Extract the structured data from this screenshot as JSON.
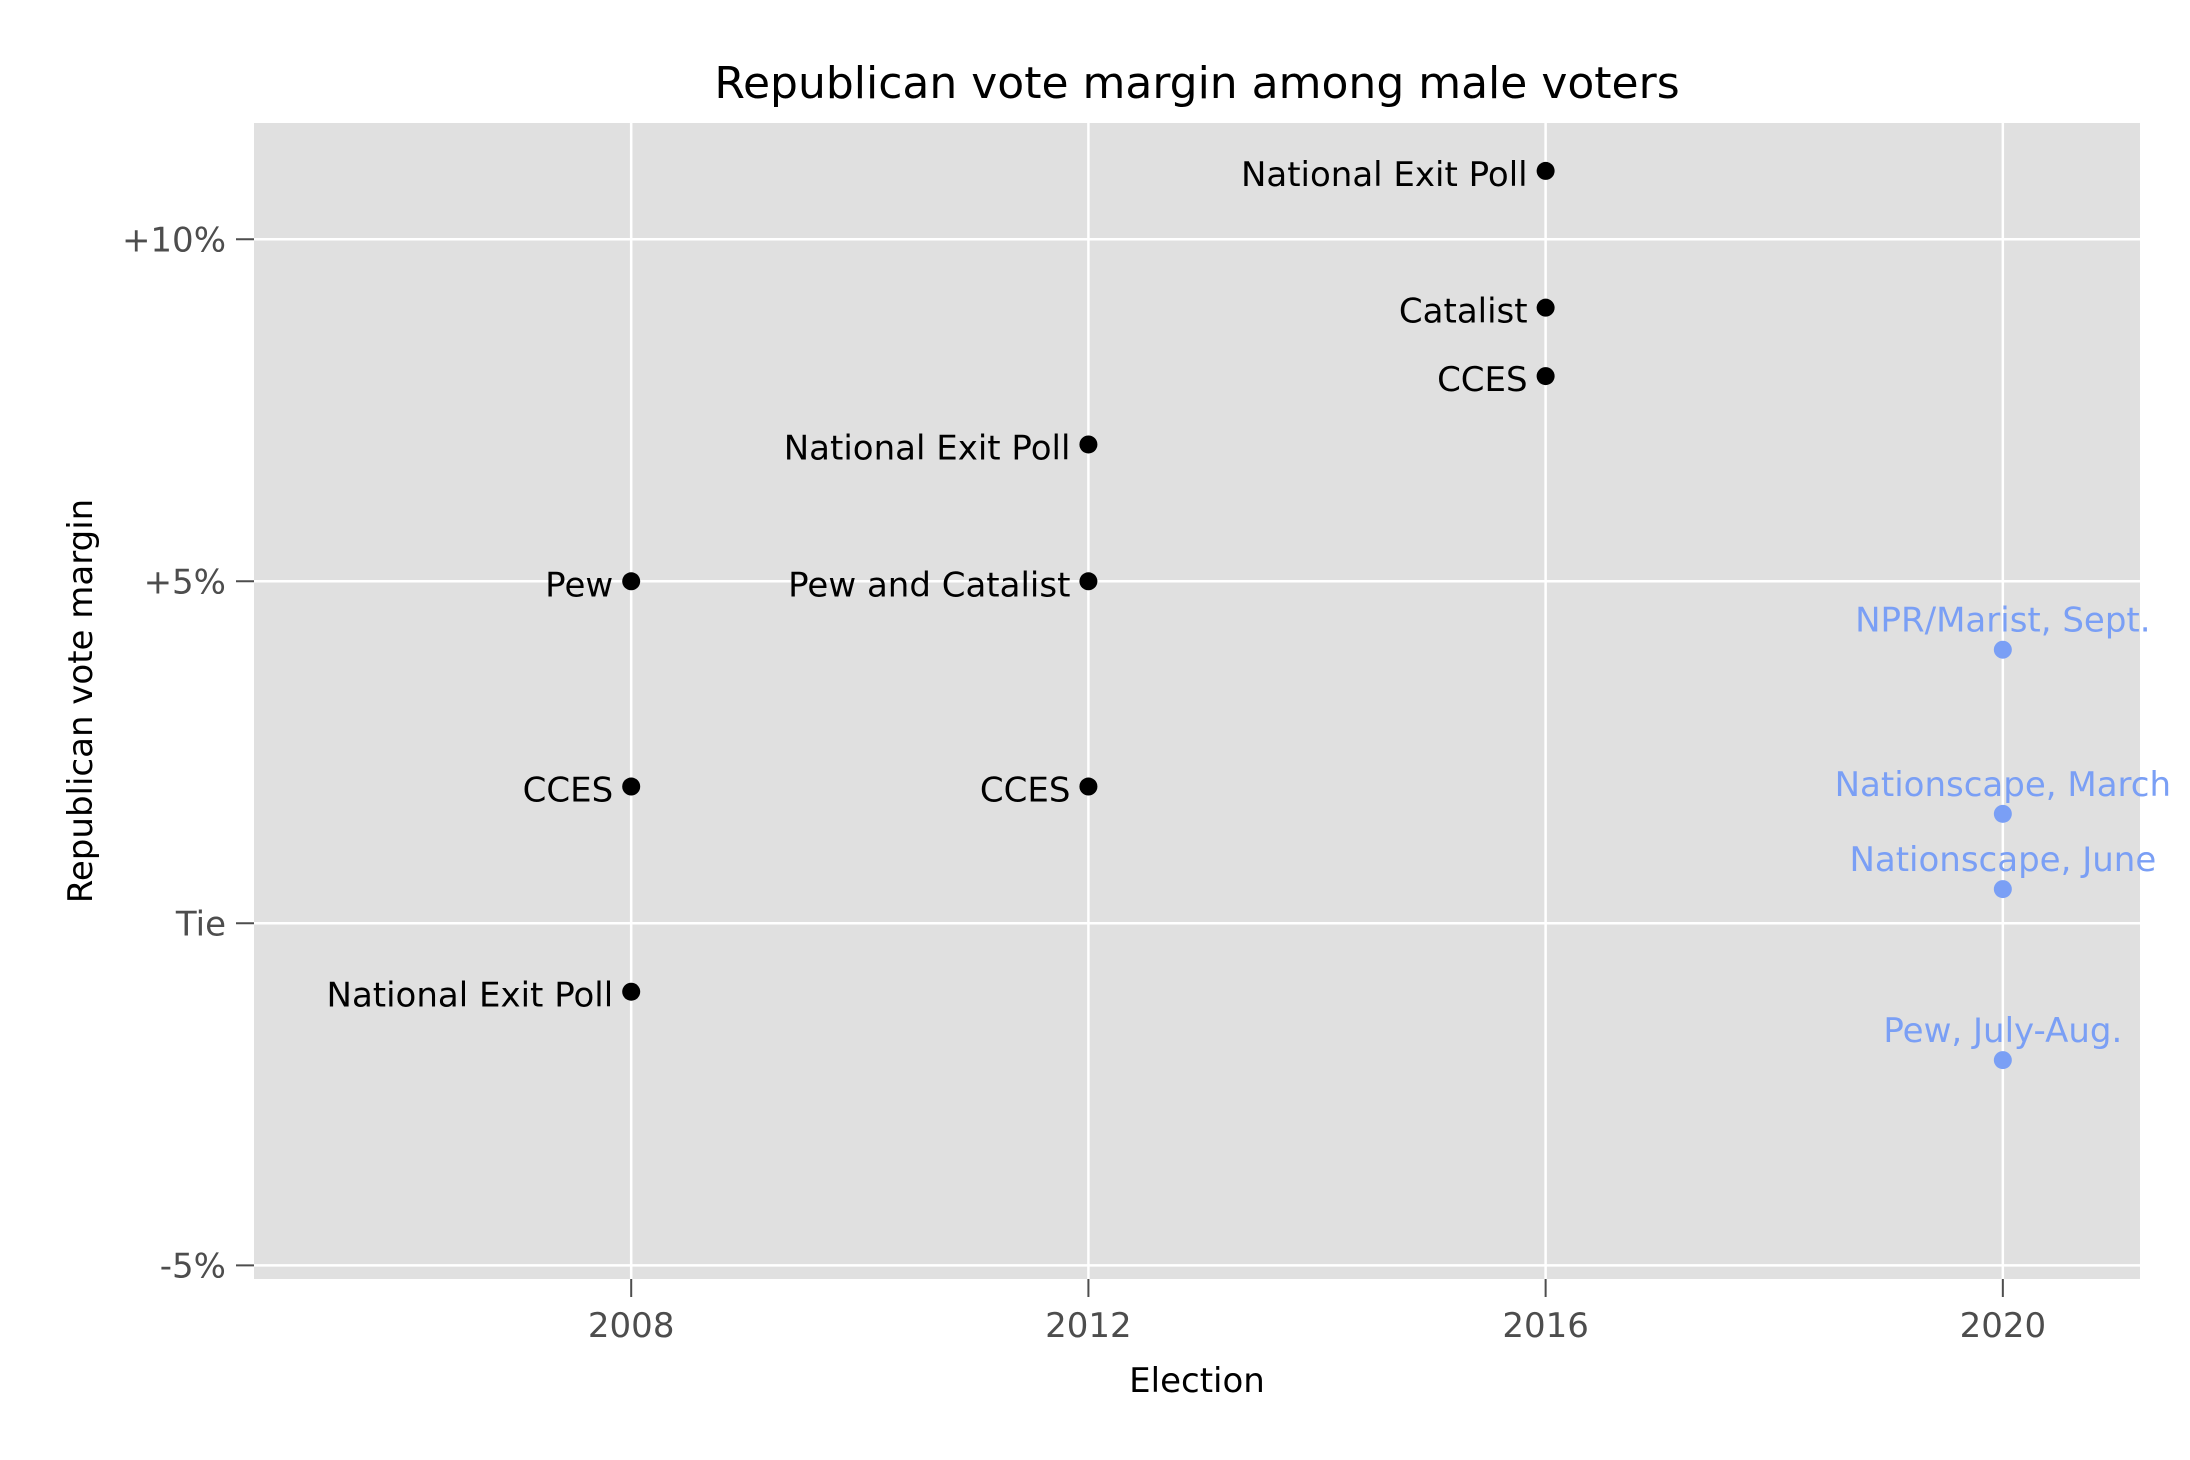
{
  "chart_data": {
    "type": "scatter",
    "title": "Republican vote margin among male voters",
    "xlabel": "Election",
    "ylabel": "Republican vote margin",
    "xlim": [
      2004.7,
      2021.2
    ],
    "ylim": [
      -5.2,
      11.7
    ],
    "x_ticks": [
      {
        "value": 2008,
        "label": "2008"
      },
      {
        "value": 2012,
        "label": "2012"
      },
      {
        "value": 2016,
        "label": "2016"
      },
      {
        "value": 2020,
        "label": "2020"
      }
    ],
    "y_ticks": [
      {
        "value": 10,
        "label": "+10%"
      },
      {
        "value": 5,
        "label": "+5%"
      },
      {
        "value": 0,
        "label": "Tie"
      },
      {
        "value": -5,
        "label": "-5%"
      }
    ],
    "grid": true,
    "legend": "none",
    "colors": {
      "panel": "#e0e0e0",
      "grid": "#ffffff",
      "past": "#000000",
      "2020": "#7a9ff5"
    },
    "points": [
      {
        "x": 2008,
        "y": 5,
        "label": "Pew",
        "group": "past"
      },
      {
        "x": 2008,
        "y": 2,
        "label": "CCES",
        "group": "past"
      },
      {
        "x": 2008,
        "y": -1,
        "label": "National Exit Poll",
        "group": "past"
      },
      {
        "x": 2012,
        "y": 7,
        "label": "National Exit Poll",
        "group": "past"
      },
      {
        "x": 2012,
        "y": 5,
        "label": "Pew and Catalist",
        "group": "past"
      },
      {
        "x": 2012,
        "y": 2,
        "label": "CCES",
        "group": "past"
      },
      {
        "x": 2016,
        "y": 11,
        "label": "National Exit Poll",
        "group": "past"
      },
      {
        "x": 2016,
        "y": 9,
        "label": "Catalist",
        "group": "past"
      },
      {
        "x": 2016,
        "y": 8,
        "label": "CCES",
        "group": "past"
      },
      {
        "x": 2020,
        "y": 4,
        "label": "NPR/Marist, Sept.",
        "group": "2020"
      },
      {
        "x": 2020,
        "y": 1.6,
        "label": "Nationscape, March",
        "group": "2020"
      },
      {
        "x": 2020,
        "y": 0.5,
        "label": "Nationscape, June",
        "group": "2020"
      },
      {
        "x": 2020,
        "y": -2,
        "label": "Pew, July-Aug.",
        "group": "2020"
      }
    ]
  }
}
